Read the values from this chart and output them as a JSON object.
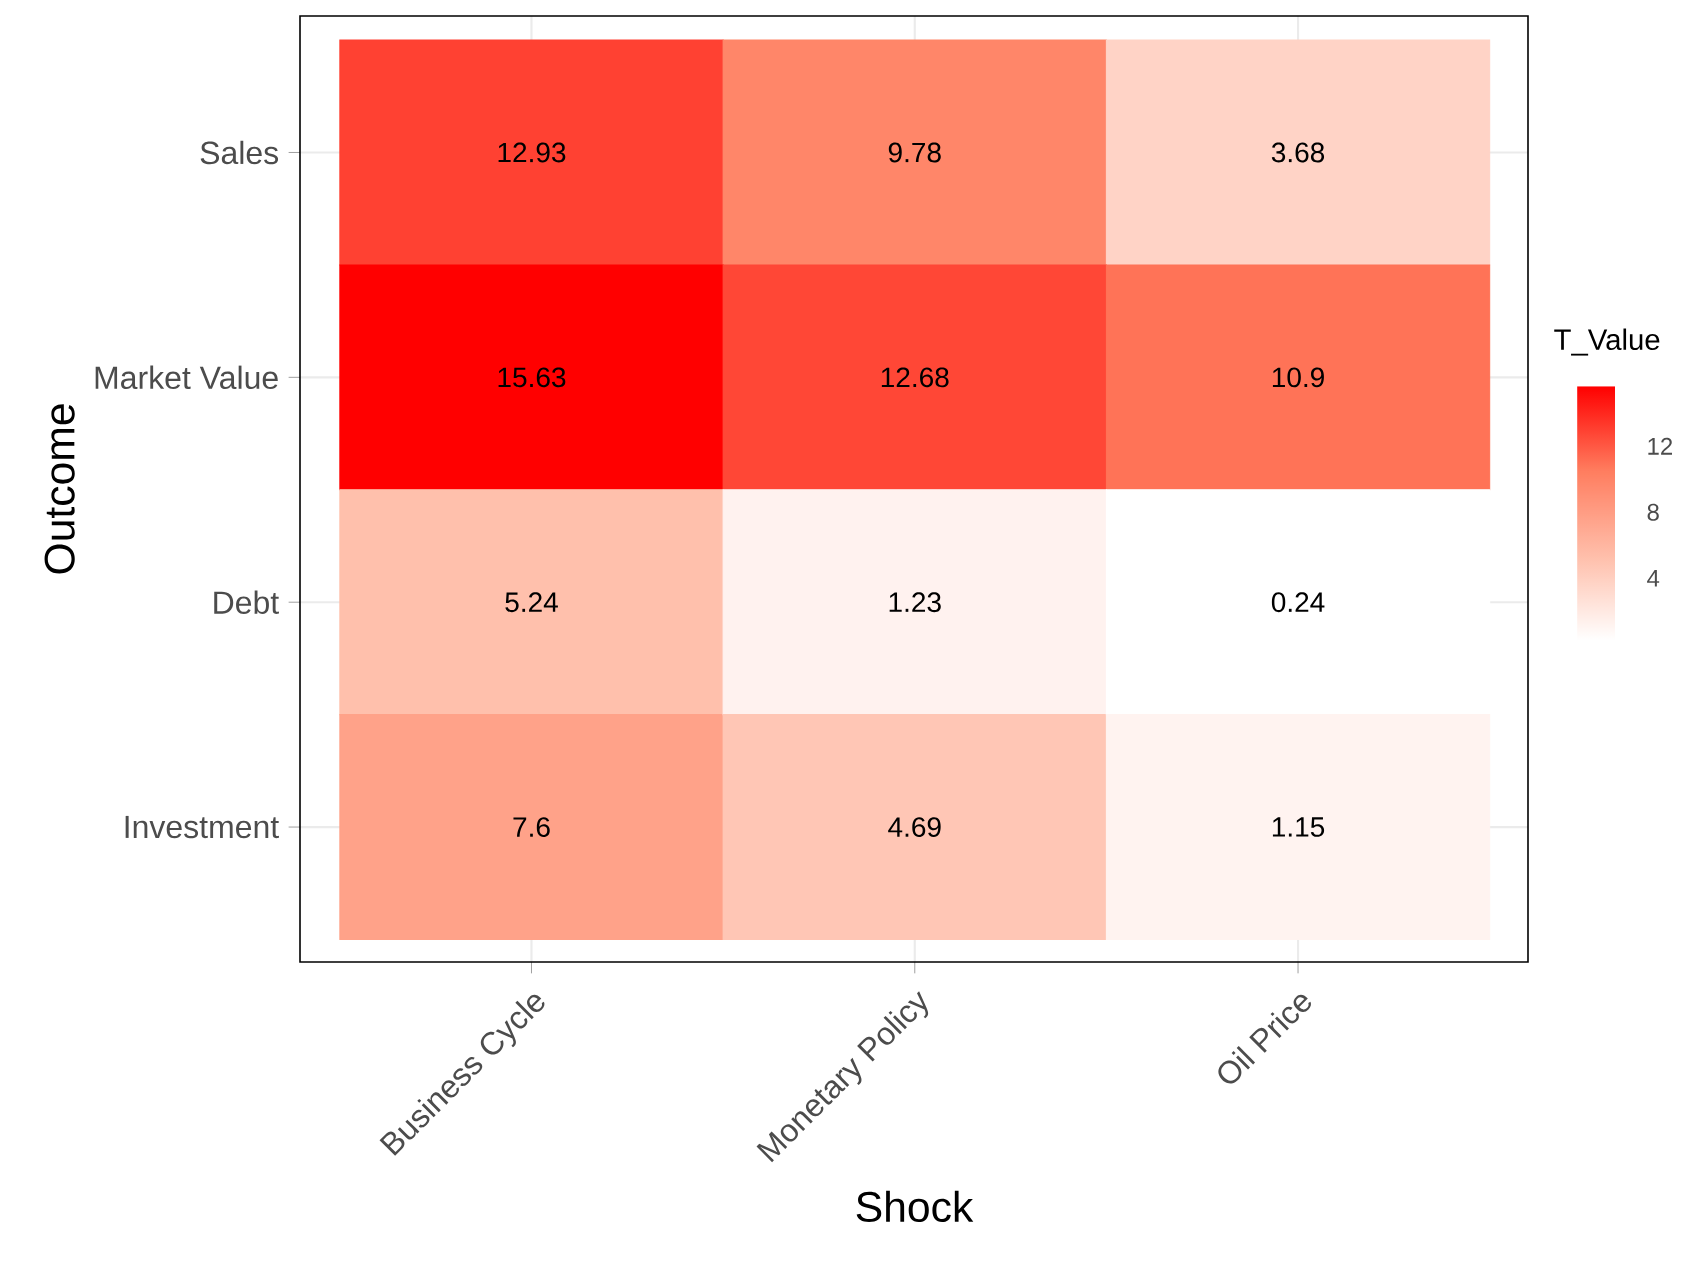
{
  "chart_data": {
    "type": "heatmap",
    "xlabel": "Shock",
    "ylabel": "Outcome",
    "clabel": "T_Value",
    "categories": [
      "Business Cycle",
      "Monetary Policy",
      "Oil Price"
    ],
    "y_categories": [
      "Sales",
      "Market Value",
      "Debt",
      "Investment"
    ],
    "cells": [
      [
        12.93,
        9.78,
        3.68
      ],
      [
        15.63,
        12.68,
        10.9
      ],
      [
        5.24,
        1.23,
        0.24
      ],
      [
        7.6,
        4.69,
        1.15
      ]
    ],
    "data_labels": true,
    "grid": true,
    "clim": [
      0.24,
      15.63
    ],
    "cticks": [
      4,
      8,
      12
    ]
  }
}
